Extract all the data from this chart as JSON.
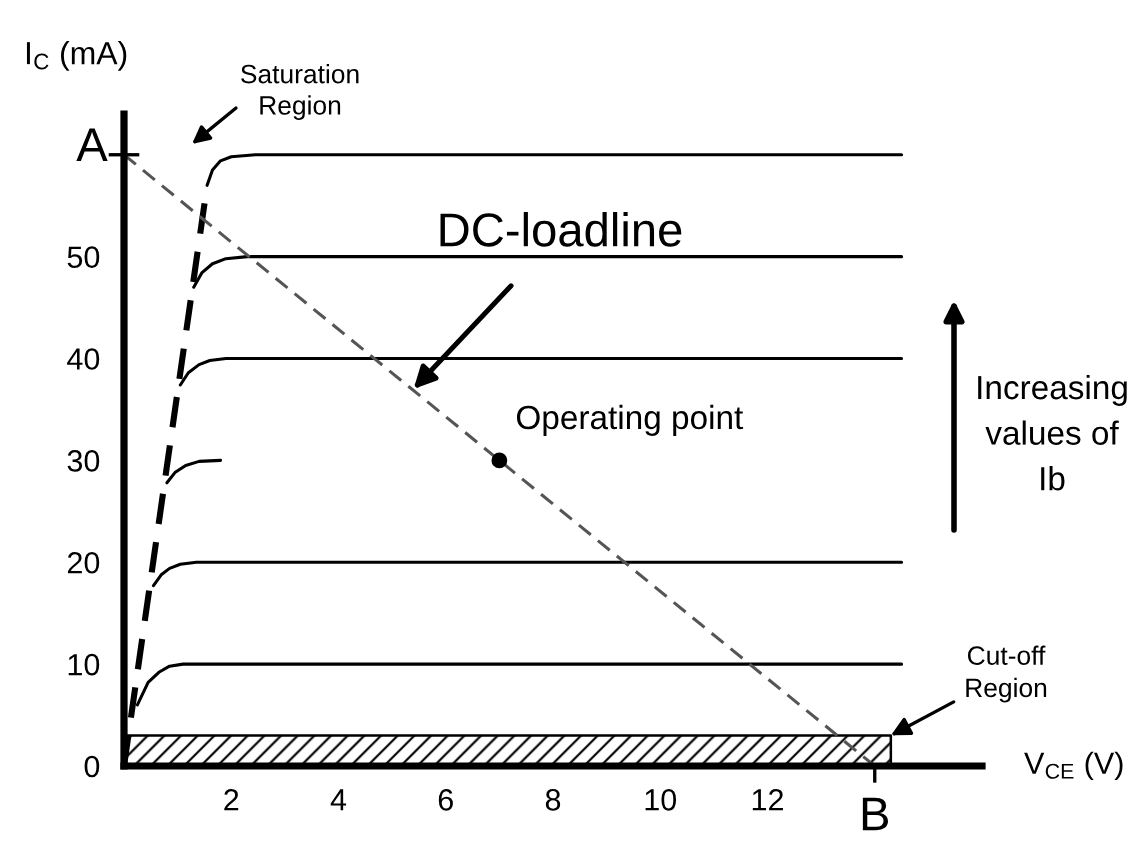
{
  "chart_data": {
    "type": "line",
    "xlabel": "V$_{CE}$ (V)",
    "ylabel": "I$_{C}$ (mA)",
    "xlim": [
      0,
      16
    ],
    "ylim": [
      0,
      64
    ],
    "xticks": [
      2,
      4,
      6,
      8,
      10,
      12,
      {
        "value": 14,
        "label": null
      }
    ],
    "yticks": [
      0,
      10,
      20,
      30,
      40,
      50,
      {
        "value": 60,
        "label": null
      }
    ],
    "series": [
      {
        "color": "#000000",
        "x": [
          0.25,
          0.45,
          0.65,
          0.85,
          1.1,
          14.5
        ],
        "values": [
          6,
          8.2,
          9.2,
          9.8,
          10,
          10
        ]
      },
      {
        "color": "#000000",
        "x": [
          0.55,
          0.7,
          0.85,
          1.05,
          1.35,
          14.5
        ],
        "values": [
          17.7,
          18.8,
          19.4,
          19.8,
          20,
          20
        ]
      },
      {
        "color": "#000000",
        "x": [
          0.8,
          0.95,
          1.15,
          1.4,
          1.8
        ],
        "values": [
          27.8,
          28.8,
          29.5,
          29.9,
          30
        ]
      },
      {
        "color": "#000000",
        "x": [
          1.05,
          1.2,
          1.4,
          1.6,
          1.9,
          14.5
        ],
        "values": [
          37.4,
          38.6,
          39.4,
          39.8,
          40,
          40
        ]
      },
      {
        "color": "#000000",
        "x": [
          1.3,
          1.45,
          1.65,
          1.9,
          2.3,
          14.5
        ],
        "values": [
          47,
          48.4,
          49.3,
          49.8,
          50,
          50
        ]
      },
      {
        "color": "#000000",
        "x": [
          1.55,
          1.65,
          1.8,
          2.0,
          2.45,
          14.5
        ],
        "values": [
          57,
          58.5,
          59.4,
          59.8,
          60,
          60
        ]
      },
      {
        "color": "#000000",
        "line_style": "dashed",
        "x": [
          0,
          1.55
        ],
        "values": [
          0,
          57
        ]
      },
      {
        "color": "#555555",
        "line_style": "dashed",
        "x": [
          0,
          14
        ],
        "values": [
          60,
          0
        ]
      },
      {
        "type": "scatter",
        "color": "#000000",
        "marker": "circle",
        "x": [
          7
        ],
        "values": [
          30
        ]
      },
      {
        "type": "area",
        "color": "#000000",
        "x": [
          0,
          14.3
        ],
        "values": [
          3,
          3
        ]
      }
    ],
    "annotations": [
      "Saturation\nRegion",
      {
        "text": "A",
        "x": 0,
        "y": 60
      },
      {
        "text": "DC-loadline",
        "x": 5.4,
        "y": 37
      },
      {
        "text": "Operating point",
        "x": 7,
        "y": 30
      },
      "Increasing\nvalues of\nIb",
      {
        "text": "Cut-off\nRegion",
        "x": 14.3,
        "y": 3
      },
      {
        "text": "B",
        "x": 14,
        "y": 0
      }
    ]
  }
}
